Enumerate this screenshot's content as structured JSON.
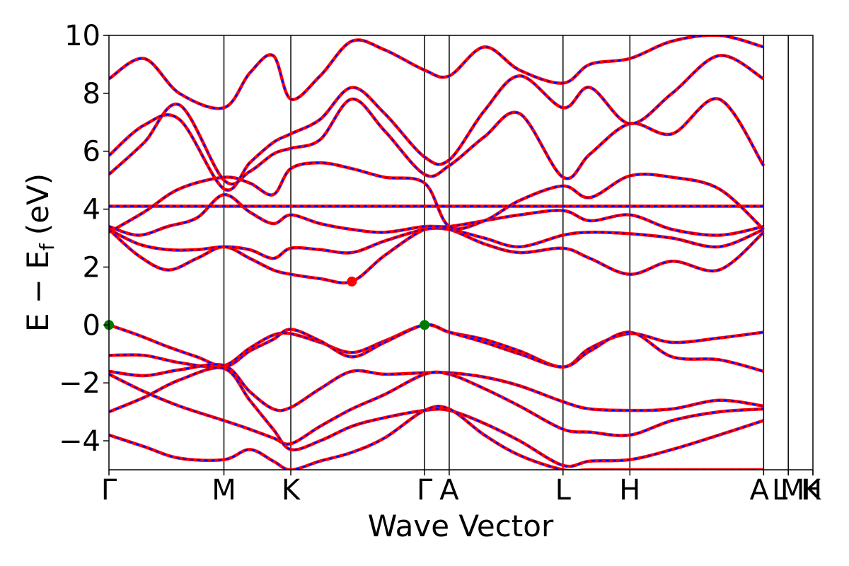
{
  "chart_data": {
    "type": "line",
    "title": "",
    "xlabel": "Wave Vector",
    "ylabel": "E − E",
    "ylabel_sub": "f",
    "ylabel_unit": "(eV)",
    "xlim": [
      0,
      6.0
    ],
    "ylim": [
      -5,
      10
    ],
    "yticks": [
      -4,
      -2,
      0,
      2,
      4,
      6,
      8,
      10
    ],
    "ytick_labels": [
      "−4",
      "−2",
      "0",
      "2",
      "4",
      "6",
      "8",
      "10"
    ],
    "kpoints": [
      {
        "label": "Γ",
        "x": 0.0
      },
      {
        "label": "M",
        "x": 0.98
      },
      {
        "label": "K",
        "x": 1.55
      },
      {
        "label": "Γ",
        "x": 2.69
      },
      {
        "label": "A",
        "x": 2.9
      },
      {
        "label": "L",
        "x": 3.87
      },
      {
        "label": "H",
        "x": 4.44
      },
      {
        "label": "A",
        "x": 5.58
      },
      {
        "label": "L",
        "x": 5.79
      },
      {
        "label": "M",
        "x": 5.79
      },
      {
        "label": "H",
        "x": 6.0
      },
      {
        "label": "K",
        "x": 6.0
      }
    ],
    "series_colors": {
      "primary": "#ff0000",
      "overlay": "#0000ff"
    },
    "cbm_marker": {
      "x": 2.07,
      "y": 1.5,
      "color": "#ff0000"
    },
    "vbm_markers": [
      {
        "x": 0.0,
        "y": 0.0,
        "color": "#007a00"
      },
      {
        "x": 2.69,
        "y": 0.0,
        "color": "#007a00"
      }
    ],
    "bands": [
      {
        "x": [
          0,
          0.25,
          0.5,
          0.75,
          0.98,
          1.2,
          1.4,
          1.55,
          1.8,
          2.07,
          2.35,
          2.69,
          2.9,
          3.2,
          3.5,
          3.87,
          4.1,
          4.44,
          4.8,
          5.2,
          5.58
        ],
        "y": [
          0.0,
          -0.35,
          -0.75,
          -1.1,
          -1.4,
          -0.8,
          -0.35,
          -0.3,
          -0.6,
          -0.95,
          -0.55,
          0.0,
          -0.25,
          -0.5,
          -0.9,
          -1.45,
          -0.8,
          -0.3,
          -0.6,
          -0.45,
          -0.25
        ]
      },
      {
        "x": [
          0,
          0.3,
          0.6,
          0.98,
          1.2,
          1.4,
          1.55,
          1.8,
          2.07,
          2.35,
          2.69,
          2.9,
          3.2,
          3.5,
          3.87,
          4.1,
          4.44,
          4.8,
          5.2,
          5.58
        ],
        "y": [
          -1.05,
          -1.05,
          -1.3,
          -1.45,
          -0.9,
          -0.5,
          -0.15,
          -0.55,
          -1.1,
          -0.6,
          0.0,
          -0.25,
          -0.6,
          -1.0,
          -1.45,
          -0.9,
          -0.25,
          -1.1,
          -1.2,
          -1.6
        ]
      },
      {
        "x": [
          0,
          0.3,
          0.6,
          0.98,
          1.2,
          1.4,
          1.55,
          1.8,
          2.07,
          2.35,
          2.69,
          2.9,
          3.2,
          3.5,
          3.87,
          4.1,
          4.44,
          4.8,
          5.2,
          5.58
        ],
        "y": [
          -1.6,
          -1.75,
          -1.55,
          -1.4,
          -2.3,
          -2.9,
          -2.85,
          -2.2,
          -1.6,
          -1.7,
          -1.65,
          -1.65,
          -1.8,
          -2.1,
          -2.65,
          -2.9,
          -2.95,
          -2.9,
          -2.6,
          -2.8
        ]
      },
      {
        "x": [
          0,
          0.3,
          0.6,
          0.98,
          1.2,
          1.4,
          1.55,
          1.8,
          2.07,
          2.35,
          2.69,
          2.9,
          3.2,
          3.5,
          3.87,
          4.1,
          4.44,
          4.8,
          5.2,
          5.58
        ],
        "y": [
          -1.7,
          -2.3,
          -2.8,
          -3.3,
          -3.6,
          -3.9,
          -4.1,
          -3.5,
          -2.9,
          -2.4,
          -1.7,
          -1.7,
          -2.2,
          -2.8,
          -3.6,
          -3.7,
          -3.8,
          -3.3,
          -3.0,
          -2.9
        ]
      },
      {
        "x": [
          0,
          0.3,
          0.6,
          0.98,
          1.2,
          1.4,
          1.55,
          1.8,
          2.07,
          2.35,
          2.69,
          2.9,
          3.2,
          3.5,
          3.87,
          4.1,
          4.44,
          4.8,
          5.2,
          5.58
        ],
        "y": [
          -3.0,
          -2.5,
          -1.9,
          -1.5,
          -2.6,
          -3.6,
          -4.3,
          -4.0,
          -3.5,
          -3.2,
          -2.95,
          -2.95,
          -3.4,
          -4.0,
          -4.85,
          -4.7,
          -4.65,
          -4.3,
          -3.8,
          -3.3
        ]
      },
      {
        "x": [
          0,
          0.3,
          0.6,
          0.98,
          1.2,
          1.4,
          1.55,
          1.8,
          2.07,
          2.35,
          2.69,
          2.9,
          3.2,
          3.5,
          3.87,
          4.1,
          4.44,
          4.8,
          5.2,
          5.58
        ],
        "y": [
          -3.8,
          -4.2,
          -4.6,
          -4.65,
          -4.3,
          -4.7,
          -5.0,
          -4.7,
          -4.4,
          -3.9,
          -2.95,
          -2.9,
          -3.8,
          -4.5,
          -5.0,
          -5.0,
          -5.0,
          -5.0,
          -5.0,
          -5.0
        ]
      },
      {
        "x": [
          0,
          0.25,
          0.5,
          0.75,
          0.98,
          1.2,
          1.4,
          1.55,
          1.8,
          2.07,
          2.35,
          2.69,
          2.9,
          3.2,
          3.5,
          3.87,
          4.1,
          4.44,
          4.8,
          5.2,
          5.58
        ],
        "y": [
          3.3,
          2.4,
          1.9,
          2.3,
          2.7,
          2.3,
          1.9,
          1.75,
          1.6,
          1.5,
          2.4,
          3.3,
          3.3,
          2.8,
          2.5,
          2.65,
          2.3,
          1.75,
          2.2,
          1.9,
          3.2
        ]
      },
      {
        "x": [
          0,
          0.25,
          0.5,
          0.75,
          0.98,
          1.2,
          1.4,
          1.55,
          1.8,
          2.07,
          2.35,
          2.69,
          2.9,
          3.2,
          3.5,
          3.87,
          4.1,
          4.44,
          4.8,
          5.2,
          5.58
        ],
        "y": [
          3.3,
          2.8,
          2.6,
          2.6,
          2.7,
          2.6,
          2.3,
          2.65,
          2.6,
          2.5,
          2.9,
          3.3,
          3.3,
          3.0,
          2.7,
          3.1,
          3.2,
          3.15,
          3.0,
          2.7,
          3.3
        ]
      },
      {
        "x": [
          0,
          0.25,
          0.5,
          0.75,
          0.98,
          1.2,
          1.4,
          1.55,
          1.8,
          2.07,
          2.35,
          2.69,
          2.9,
          3.2,
          3.5,
          3.87,
          4.1,
          4.44,
          4.8,
          5.2,
          5.58
        ],
        "y": [
          3.4,
          3.1,
          3.4,
          3.7,
          4.5,
          3.9,
          3.5,
          3.8,
          3.5,
          3.3,
          3.2,
          3.4,
          3.4,
          3.6,
          3.8,
          3.95,
          3.6,
          3.8,
          3.3,
          3.1,
          3.4
        ]
      },
      {
        "x": [
          0,
          0.3,
          0.6,
          0.98,
          1.2,
          1.4,
          1.55,
          1.8,
          2.07,
          2.35,
          2.69,
          2.9,
          3.2,
          3.5,
          3.87,
          4.1,
          4.44,
          4.8,
          5.2,
          5.58
        ],
        "y": [
          4.1,
          4.1,
          4.1,
          4.1,
          4.1,
          4.1,
          4.1,
          4.1,
          4.1,
          4.1,
          4.1,
          4.1,
          4.1,
          4.1,
          4.1,
          4.1,
          4.1,
          4.1,
          4.1,
          4.1
        ]
      },
      {
        "x": [
          0,
          0.3,
          0.6,
          0.98,
          1.2,
          1.4,
          1.55,
          1.8,
          2.07,
          2.35,
          2.69,
          2.9,
          3.2,
          3.5,
          3.87,
          4.1,
          4.44,
          4.8,
          5.2,
          5.58
        ],
        "y": [
          3.2,
          3.9,
          4.7,
          5.1,
          4.9,
          4.5,
          5.4,
          5.6,
          5.4,
          5.1,
          4.9,
          3.4,
          3.6,
          4.3,
          4.8,
          4.4,
          5.15,
          5.1,
          4.7,
          3.3
        ]
      },
      {
        "x": [
          0,
          0.3,
          0.6,
          0.98,
          1.2,
          1.4,
          1.55,
          1.8,
          2.07,
          2.35,
          2.69,
          2.9,
          3.2,
          3.5,
          3.87,
          4.1,
          4.44,
          4.8,
          5.2,
          5.58
        ],
        "y": [
          5.2,
          6.3,
          7.6,
          5.0,
          5.3,
          5.9,
          6.1,
          6.4,
          7.8,
          6.7,
          5.2,
          5.5,
          6.5,
          7.3,
          5.1,
          5.9,
          6.95,
          6.6,
          7.8,
          5.5
        ]
      },
      {
        "x": [
          0,
          0.3,
          0.6,
          0.98,
          1.2,
          1.4,
          1.55,
          1.8,
          2.07,
          2.35,
          2.69,
          2.9,
          3.2,
          3.5,
          3.87,
          4.1,
          4.44,
          4.8,
          5.2,
          5.58
        ],
        "y": [
          5.85,
          6.9,
          7.1,
          4.7,
          5.6,
          6.3,
          6.6,
          7.1,
          8.2,
          7.3,
          5.8,
          5.7,
          7.4,
          8.6,
          7.5,
          8.2,
          6.95,
          8.0,
          9.3,
          8.5
        ]
      },
      {
        "x": [
          0,
          0.3,
          0.6,
          0.98,
          1.2,
          1.4,
          1.55,
          1.8,
          2.07,
          2.35,
          2.69,
          2.9,
          3.2,
          3.5,
          3.87,
          4.1,
          4.44,
          4.8,
          5.2,
          5.58
        ],
        "y": [
          8.5,
          9.2,
          8.0,
          7.5,
          8.7,
          9.3,
          7.8,
          8.6,
          9.8,
          9.5,
          8.8,
          8.6,
          9.6,
          8.8,
          8.35,
          9.0,
          9.2,
          9.8,
          10.0,
          9.6
        ]
      }
    ]
  }
}
